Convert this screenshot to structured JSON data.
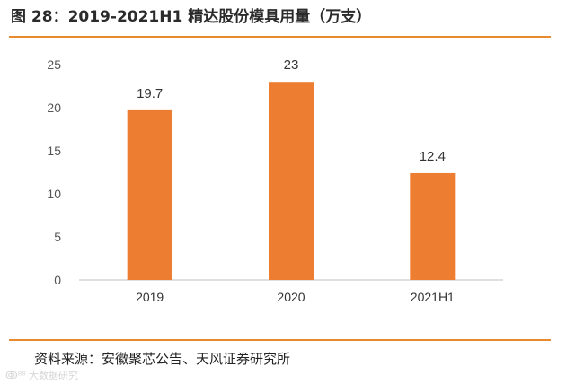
{
  "figure": {
    "title": "图 28：2019-2021H1 精达股份模具用量（万支）",
    "source": "资料来源：安徽聚芯公告、天风证券研究所",
    "watermark": "大数据研究"
  },
  "colors": {
    "bar": "#ed7d31",
    "rule": "#e88a2e",
    "axis": "#bfbfbf"
  },
  "chart_data": {
    "type": "bar",
    "title": "精达股份模具用量（万支）",
    "categories": [
      "2019",
      "2020",
      "2021H1"
    ],
    "values": [
      19.7,
      23,
      12.4
    ],
    "data_labels": [
      "19.7",
      "23",
      "12.4"
    ],
    "ylim": [
      0,
      25
    ],
    "yticks": [
      0,
      5,
      10,
      15,
      20,
      25
    ],
    "xlabel": "",
    "ylabel": "",
    "grid": false,
    "legend": "none"
  }
}
